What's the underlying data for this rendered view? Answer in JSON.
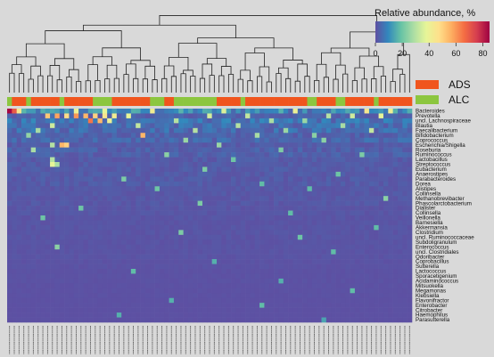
{
  "chart_data": {
    "type": "heatmap",
    "title": "",
    "colorbar": {
      "title": "Relative abundance, %",
      "ticks": [
        "0",
        "20",
        "40",
        "60",
        "80"
      ],
      "range": [
        0,
        85
      ],
      "colors": [
        "#5e4fa2",
        "#3288bd",
        "#66c2a5",
        "#abdda4",
        "#e6f598",
        "#fee08b",
        "#fdae61",
        "#f46d43",
        "#d53e4f",
        "#9e0142"
      ]
    },
    "groups": [
      {
        "name": "ADS",
        "color": "#f0551e"
      },
      {
        "name": "ALC",
        "color": "#8cc63f"
      }
    ],
    "sample_count": 85,
    "sample_groups": "GARRGRAARRAGRARAARGGGGRRARRRARGGGRAGGGGGGGGGRRARRGRRRRRRRARARRRGGRARAGGRRARRRGRRRARRA",
    "sample_labels_note": "",
    "genera": [
      "Bacteroides",
      "Prevotella",
      "uncl. Lachnospiraceae",
      "Blautia",
      "Faecalibacterium",
      "Bifidobacterium",
      "Coprococcus",
      "Escherichia/Shigella",
      "Roseburia",
      "Ruminococcus",
      "Lactobacillus",
      "Streptococcus",
      "Eubacterium",
      "Anaerostipes",
      "Parabacteroides",
      "Dorea",
      "Alistipes",
      "Collinsella",
      "Methanobrevibacter",
      "Phascolarctobacterium",
      "Dialister",
      "Collinsella",
      "Veillonella",
      "Barnesiella",
      "Akkermansia",
      "Clostridium",
      "uncl. Ruminococcaceae",
      "Subdoligranulum",
      "Enterococcus",
      "uncl. Clostridiales",
      "Odoribacter",
      "Coprobacillus",
      "Sutterella",
      "Lactococcus",
      "Sporacetigenium",
      "Acidaminococcus",
      "Mitsuokella",
      "Megamonas",
      "Klebsiella",
      "Flavonifractor",
      "Enterobacter",
      "Citrobacter",
      "Haemophilus",
      "Parasutterella"
    ],
    "row_base": [
      10,
      3,
      6,
      5,
      5,
      3,
      4,
      2,
      3,
      3,
      2,
      2,
      2,
      2,
      2,
      2,
      1.5,
      1.5,
      1.5,
      1.5,
      1.2,
      1.2,
      1,
      1,
      1,
      1,
      1,
      0.8,
      0.8,
      0.8,
      0.8,
      0.6,
      0.6,
      0.5,
      0.5,
      0.5,
      0.4,
      0.4,
      0.4,
      0.3,
      0.3,
      0.3,
      0.3,
      0.3
    ],
    "highlights": [
      {
        "row": 0,
        "col": 0,
        "value": 84
      },
      {
        "row": 0,
        "col": 1,
        "value": 70
      },
      {
        "row": 0,
        "col": 2,
        "value": 45
      },
      {
        "row": 0,
        "col": 14,
        "value": 40
      },
      {
        "row": 0,
        "col": 20,
        "value": 38
      },
      {
        "row": 0,
        "col": 30,
        "value": 42
      },
      {
        "row": 0,
        "col": 45,
        "value": 36
      },
      {
        "row": 0,
        "col": 60,
        "value": 40
      },
      {
        "row": 0,
        "col": 75,
        "value": 44
      },
      {
        "row": 0,
        "col": 80,
        "value": 41
      },
      {
        "row": 1,
        "col": 8,
        "value": 52
      },
      {
        "row": 1,
        "col": 10,
        "value": 58
      },
      {
        "row": 1,
        "col": 12,
        "value": 48
      },
      {
        "row": 1,
        "col": 14,
        "value": 60
      },
      {
        "row": 1,
        "col": 16,
        "value": 55
      },
      {
        "row": 1,
        "col": 18,
        "value": 50
      },
      {
        "row": 1,
        "col": 20,
        "value": 45
      },
      {
        "row": 1,
        "col": 22,
        "value": 42
      },
      {
        "row": 1,
        "col": 25,
        "value": 38
      },
      {
        "row": 1,
        "col": 42,
        "value": 35
      },
      {
        "row": 1,
        "col": 50,
        "value": 32
      },
      {
        "row": 1,
        "col": 67,
        "value": 30
      },
      {
        "row": 1,
        "col": 72,
        "value": 34
      },
      {
        "row": 1,
        "col": 78,
        "value": 38
      },
      {
        "row": 2,
        "col": 17,
        "value": 65
      },
      {
        "row": 2,
        "col": 19,
        "value": 55
      },
      {
        "row": 2,
        "col": 21,
        "value": 40
      },
      {
        "row": 2,
        "col": 35,
        "value": 30
      },
      {
        "row": 2,
        "col": 55,
        "value": 28
      },
      {
        "row": 2,
        "col": 62,
        "value": 26
      },
      {
        "row": 3,
        "col": 9,
        "value": 34
      },
      {
        "row": 3,
        "col": 27,
        "value": 32
      },
      {
        "row": 3,
        "col": 48,
        "value": 30
      },
      {
        "row": 3,
        "col": 70,
        "value": 28
      },
      {
        "row": 4,
        "col": 6,
        "value": 28
      },
      {
        "row": 4,
        "col": 39,
        "value": 30
      },
      {
        "row": 4,
        "col": 58,
        "value": 26
      },
      {
        "row": 4,
        "col": 76,
        "value": 32
      },
      {
        "row": 5,
        "col": 28,
        "value": 55
      },
      {
        "row": 5,
        "col": 4,
        "value": 25
      },
      {
        "row": 5,
        "col": 52,
        "value": 28
      },
      {
        "row": 5,
        "col": 64,
        "value": 24
      },
      {
        "row": 6,
        "col": 37,
        "value": 26
      },
      {
        "row": 6,
        "col": 66,
        "value": 24
      },
      {
        "row": 7,
        "col": 11,
        "value": 55
      },
      {
        "row": 7,
        "col": 12,
        "value": 50
      },
      {
        "row": 7,
        "col": 9,
        "value": 30
      },
      {
        "row": 7,
        "col": 44,
        "value": 26
      },
      {
        "row": 8,
        "col": 5,
        "value": 28
      },
      {
        "row": 8,
        "col": 57,
        "value": 22
      },
      {
        "row": 9,
        "col": 33,
        "value": 24
      },
      {
        "row": 9,
        "col": 74,
        "value": 22
      },
      {
        "row": 10,
        "col": 9,
        "value": 30
      },
      {
        "row": 10,
        "col": 47,
        "value": 20
      },
      {
        "row": 11,
        "col": 9,
        "value": 38
      },
      {
        "row": 11,
        "col": 10,
        "value": 28
      },
      {
        "row": 12,
        "col": 41,
        "value": 22
      },
      {
        "row": 13,
        "col": 69,
        "value": 20
      },
      {
        "row": 14,
        "col": 24,
        "value": 22
      },
      {
        "row": 15,
        "col": 53,
        "value": 18
      },
      {
        "row": 16,
        "col": 31,
        "value": 20
      },
      {
        "row": 16,
        "col": 63,
        "value": 18
      },
      {
        "row": 18,
        "col": 79,
        "value": 24
      },
      {
        "row": 19,
        "col": 40,
        "value": 22
      },
      {
        "row": 20,
        "col": 15,
        "value": 20
      },
      {
        "row": 21,
        "col": 59,
        "value": 18
      },
      {
        "row": 22,
        "col": 7,
        "value": 20
      },
      {
        "row": 24,
        "col": 77,
        "value": 18
      },
      {
        "row": 25,
        "col": 36,
        "value": 22
      },
      {
        "row": 26,
        "col": 61,
        "value": 20
      },
      {
        "row": 28,
        "col": 10,
        "value": 24
      },
      {
        "row": 29,
        "col": 68,
        "value": 18
      },
      {
        "row": 31,
        "col": 43,
        "value": 16
      },
      {
        "row": 33,
        "col": 26,
        "value": 18
      },
      {
        "row": 35,
        "col": 57,
        "value": 16
      },
      {
        "row": 37,
        "col": 72,
        "value": 18
      },
      {
        "row": 39,
        "col": 34,
        "value": 16
      },
      {
        "row": 40,
        "col": 53,
        "value": 18
      },
      {
        "row": 42,
        "col": 23,
        "value": 16
      },
      {
        "row": 43,
        "col": 66,
        "value": 14
      }
    ]
  }
}
